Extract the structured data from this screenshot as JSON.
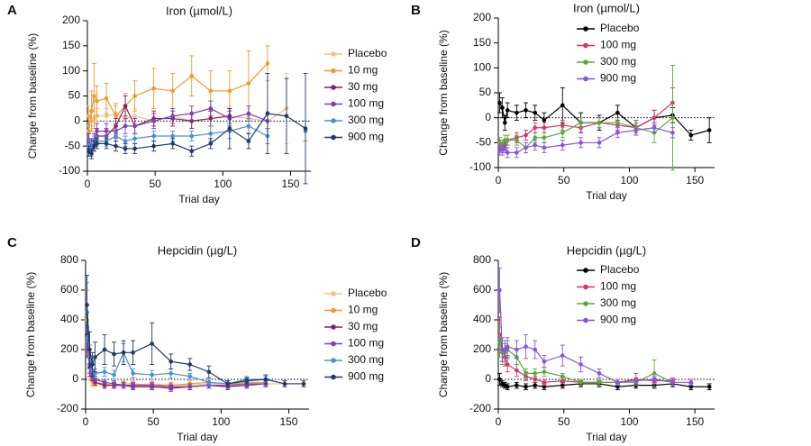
{
  "chart_data": [
    {
      "type": "line",
      "label": "A",
      "title": "Iron (µmol/L)",
      "xlabel": "Trial day",
      "ylabel": "Change from baseline (%)",
      "xlim": [
        0,
        165
      ],
      "xticks": [
        0,
        50,
        100,
        150
      ],
      "ylim": [
        -100,
        200
      ],
      "yticks": [
        -100,
        -50,
        0,
        50,
        100,
        150,
        200
      ],
      "legend": "right",
      "x": [
        1,
        3,
        5,
        7,
        14,
        21,
        28,
        35,
        49,
        63,
        77,
        91,
        105,
        119,
        133,
        147,
        161
      ],
      "series": [
        {
          "name": "Placebo",
          "color": "#f3c283",
          "values": [
            10,
            0,
            5,
            10,
            10,
            15,
            5,
            10,
            0,
            10,
            0,
            5,
            10,
            5,
            0,
            25,
            null
          ],
          "errors": [
            20,
            20,
            15,
            15,
            15,
            15,
            15,
            15,
            15,
            15,
            15,
            15,
            20,
            20,
            20,
            70,
            null
          ]
        },
        {
          "name": "10 mg",
          "color": "#ee9a2c",
          "values": [
            -20,
            20,
            50,
            40,
            45,
            10,
            30,
            50,
            65,
            60,
            90,
            60,
            60,
            75,
            115,
            null,
            null
          ],
          "errors": [
            30,
            40,
            65,
            30,
            30,
            25,
            25,
            30,
            40,
            35,
            40,
            40,
            40,
            65,
            35,
            null,
            null
          ]
        },
        {
          "name": "30 mg",
          "color": "#8a1d5c",
          "values": [
            -40,
            -50,
            -40,
            -30,
            -30,
            -10,
            30,
            -10,
            5,
            5,
            0,
            5,
            10,
            null,
            null,
            null,
            null
          ],
          "errors": [
            15,
            15,
            15,
            15,
            15,
            15,
            20,
            15,
            15,
            15,
            15,
            15,
            15,
            null,
            null,
            null,
            null
          ]
        },
        {
          "name": "100 mg",
          "color": "#7a3fc0",
          "values": [
            -40,
            -50,
            -40,
            -20,
            -20,
            -20,
            -10,
            -10,
            0,
            10,
            15,
            25,
            5,
            15,
            0,
            null,
            null
          ],
          "errors": [
            15,
            15,
            15,
            15,
            15,
            15,
            15,
            15,
            15,
            15,
            15,
            15,
            15,
            15,
            15,
            null,
            null
          ]
        },
        {
          "name": "300 mg",
          "color": "#4a90d0",
          "values": [
            -50,
            -55,
            -45,
            -40,
            -40,
            -30,
            -40,
            -35,
            -30,
            -30,
            -30,
            -25,
            -20,
            -10,
            -30,
            null,
            -20
          ],
          "errors": [
            15,
            15,
            15,
            10,
            10,
            10,
            10,
            10,
            10,
            10,
            10,
            15,
            15,
            15,
            15,
            null,
            20
          ]
        },
        {
          "name": "900 mg",
          "color": "#1f3864",
          "values": [
            -60,
            -65,
            -50,
            -45,
            -45,
            -50,
            -55,
            -55,
            -50,
            -45,
            -60,
            -45,
            -15,
            -40,
            15,
            10,
            -15
          ],
          "errors": [
            10,
            10,
            10,
            10,
            10,
            10,
            10,
            10,
            10,
            10,
            10,
            10,
            40,
            15,
            80,
            75,
            110
          ]
        }
      ]
    },
    {
      "type": "line",
      "label": "B",
      "title": "Iron (µmol/L)",
      "xlabel": "Trial day",
      "ylabel": "Change from baseline (%)",
      "xlim": [
        0,
        165
      ],
      "xticks": [
        0,
        50,
        100,
        150
      ],
      "ylim": [
        -100,
        200
      ],
      "yticks": [
        -100,
        -50,
        0,
        50,
        100,
        150,
        200
      ],
      "legend": "right",
      "x": [
        1,
        3,
        5,
        7,
        14,
        21,
        28,
        35,
        49,
        63,
        77,
        91,
        105,
        119,
        133,
        147,
        161
      ],
      "series": [
        {
          "name": "Placebo",
          "color": "#000000",
          "values": [
            30,
            20,
            -10,
            15,
            10,
            15,
            10,
            -5,
            25,
            -10,
            -10,
            10,
            -20,
            0,
            5,
            -35,
            -25
          ],
          "errors": [
            20,
            20,
            15,
            15,
            15,
            15,
            15,
            15,
            35,
            20,
            15,
            15,
            15,
            15,
            15,
            10,
            25
          ]
        },
        {
          "name": "100 mg",
          "color": "#d6336c",
          "values": [
            -55,
            -60,
            -55,
            -45,
            -40,
            -35,
            -20,
            -20,
            -15,
            -20,
            -10,
            -15,
            -20,
            0,
            30,
            null,
            null
          ],
          "errors": [
            10,
            10,
            10,
            10,
            10,
            10,
            10,
            10,
            10,
            10,
            10,
            10,
            10,
            15,
            30,
            null,
            null
          ]
        },
        {
          "name": "300 mg",
          "color": "#5aa83a",
          "values": [
            -50,
            -55,
            -45,
            -45,
            -45,
            -60,
            -40,
            -40,
            -30,
            -10,
            -10,
            -10,
            -20,
            -30,
            0,
            null,
            null
          ],
          "errors": [
            10,
            10,
            10,
            10,
            10,
            10,
            10,
            10,
            10,
            10,
            10,
            10,
            15,
            20,
            105,
            null,
            null
          ]
        },
        {
          "name": "900 mg",
          "color": "#8855d8",
          "values": [
            -65,
            -65,
            -60,
            -70,
            -70,
            -60,
            -55,
            -60,
            -55,
            -50,
            -50,
            -30,
            -25,
            -20,
            -30,
            null,
            null
          ],
          "errors": [
            10,
            10,
            10,
            10,
            10,
            10,
            10,
            10,
            10,
            10,
            10,
            10,
            10,
            10,
            10,
            null,
            null
          ]
        }
      ]
    },
    {
      "type": "line",
      "label": "C",
      "title": "Hepcidin (µg/L)",
      "xlabel": "Trial day",
      "ylabel": "Change from baseline (%)",
      "xlim": [
        0,
        165
      ],
      "xticks": [
        0,
        50,
        100,
        150
      ],
      "ylim": [
        -200,
        800
      ],
      "yticks": [
        -200,
        0,
        200,
        400,
        600,
        800
      ],
      "legend": "right",
      "x": [
        1,
        3,
        5,
        7,
        14,
        21,
        28,
        35,
        49,
        63,
        77,
        91,
        105,
        119,
        133,
        147,
        161
      ],
      "series": [
        {
          "name": "Placebo",
          "color": "#f3c283",
          "values": [
            300,
            50,
            -20,
            -30,
            -40,
            -40,
            -40,
            -40,
            -30,
            -40,
            -40,
            -30,
            -30,
            -30,
            -30,
            -30,
            -30
          ],
          "errors": [
            150,
            60,
            30,
            20,
            20,
            20,
            20,
            20,
            20,
            20,
            20,
            20,
            20,
            20,
            20,
            20,
            20
          ]
        },
        {
          "name": "10 mg",
          "color": "#ee9a2c",
          "values": [
            400,
            100,
            0,
            -20,
            -30,
            -40,
            -30,
            -30,
            -40,
            -40,
            -30,
            -20,
            -30,
            -20,
            -20,
            null,
            null
          ],
          "errors": [
            200,
            80,
            40,
            20,
            20,
            20,
            20,
            20,
            20,
            20,
            20,
            20,
            20,
            20,
            20,
            null,
            null
          ]
        },
        {
          "name": "30 mg",
          "color": "#8a1d5c",
          "values": [
            300,
            80,
            20,
            -20,
            -40,
            -40,
            -40,
            -50,
            -50,
            -60,
            -50,
            -40,
            -50,
            -40,
            -30,
            null,
            null
          ],
          "errors": [
            150,
            60,
            30,
            20,
            20,
            20,
            20,
            20,
            20,
            20,
            20,
            20,
            20,
            20,
            20,
            null,
            null
          ]
        },
        {
          "name": "100 mg",
          "color": "#7a3fc0",
          "values": [
            350,
            100,
            30,
            0,
            -20,
            -30,
            -40,
            -40,
            -40,
            -50,
            -50,
            -40,
            -40,
            -30,
            -30,
            null,
            null
          ],
          "errors": [
            150,
            60,
            30,
            20,
            20,
            20,
            20,
            20,
            20,
            20,
            20,
            20,
            20,
            20,
            20,
            null,
            null
          ]
        },
        {
          "name": "300 mg",
          "color": "#4a90d0",
          "values": [
            450,
            150,
            60,
            40,
            50,
            30,
            180,
            40,
            30,
            40,
            20,
            -20,
            -30,
            0,
            0,
            null,
            null
          ],
          "errors": [
            200,
            80,
            40,
            30,
            30,
            30,
            60,
            30,
            30,
            30,
            20,
            20,
            20,
            20,
            20,
            null,
            null
          ]
        },
        {
          "name": "900 mg",
          "color": "#1f3864",
          "values": [
            500,
            200,
            100,
            150,
            200,
            170,
            180,
            180,
            240,
            120,
            100,
            50,
            -30,
            -10,
            0,
            -30,
            -30
          ],
          "errors": [
            200,
            120,
            80,
            100,
            100,
            80,
            80,
            80,
            140,
            50,
            40,
            40,
            20,
            20,
            30,
            20,
            20
          ]
        }
      ]
    },
    {
      "type": "line",
      "label": "D",
      "title": "Hepcidin (µg/L)",
      "xlabel": "Trial day",
      "ylabel": "Change from baseline (%)",
      "xlim": [
        0,
        165
      ],
      "xticks": [
        0,
        50,
        100,
        150
      ],
      "ylim": [
        -200,
        800
      ],
      "yticks": [
        -200,
        0,
        200,
        400,
        600,
        800
      ],
      "legend": "right",
      "x": [
        1,
        3,
        5,
        7,
        14,
        21,
        28,
        35,
        49,
        63,
        77,
        91,
        105,
        119,
        133,
        147,
        161
      ],
      "series": [
        {
          "name": "Placebo",
          "color": "#000000",
          "values": [
            0,
            -30,
            -40,
            -50,
            -40,
            -50,
            -40,
            -50,
            -40,
            -30,
            -30,
            -50,
            -40,
            -40,
            -30,
            -50,
            -50
          ],
          "errors": [
            40,
            20,
            20,
            20,
            20,
            20,
            20,
            20,
            20,
            20,
            20,
            20,
            20,
            20,
            20,
            20,
            20
          ]
        },
        {
          "name": "100 mg",
          "color": "#d6336c",
          "values": [
            300,
            200,
            150,
            100,
            60,
            20,
            0,
            -20,
            -10,
            -20,
            -20,
            -20,
            0,
            -10,
            -10,
            null,
            null
          ],
          "errors": [
            120,
            80,
            60,
            50,
            40,
            30,
            20,
            20,
            20,
            20,
            20,
            20,
            40,
            20,
            20,
            null,
            null
          ]
        },
        {
          "name": "300 mg",
          "color": "#5aa83a",
          "values": [
            250,
            180,
            180,
            200,
            150,
            40,
            40,
            50,
            20,
            -20,
            -20,
            -20,
            -20,
            40,
            -20,
            null,
            null
          ],
          "errors": [
            100,
            80,
            60,
            60,
            50,
            30,
            30,
            30,
            20,
            20,
            20,
            20,
            20,
            90,
            20,
            null,
            null
          ]
        },
        {
          "name": "900 mg",
          "color": "#8855d8",
          "values": [
            600,
            200,
            200,
            220,
            200,
            220,
            200,
            120,
            160,
            100,
            40,
            -20,
            -10,
            0,
            -20,
            -20,
            null
          ],
          "errors": [
            150,
            80,
            60,
            60,
            60,
            80,
            60,
            40,
            70,
            50,
            30,
            20,
            20,
            20,
            20,
            20,
            null
          ]
        }
      ]
    }
  ]
}
